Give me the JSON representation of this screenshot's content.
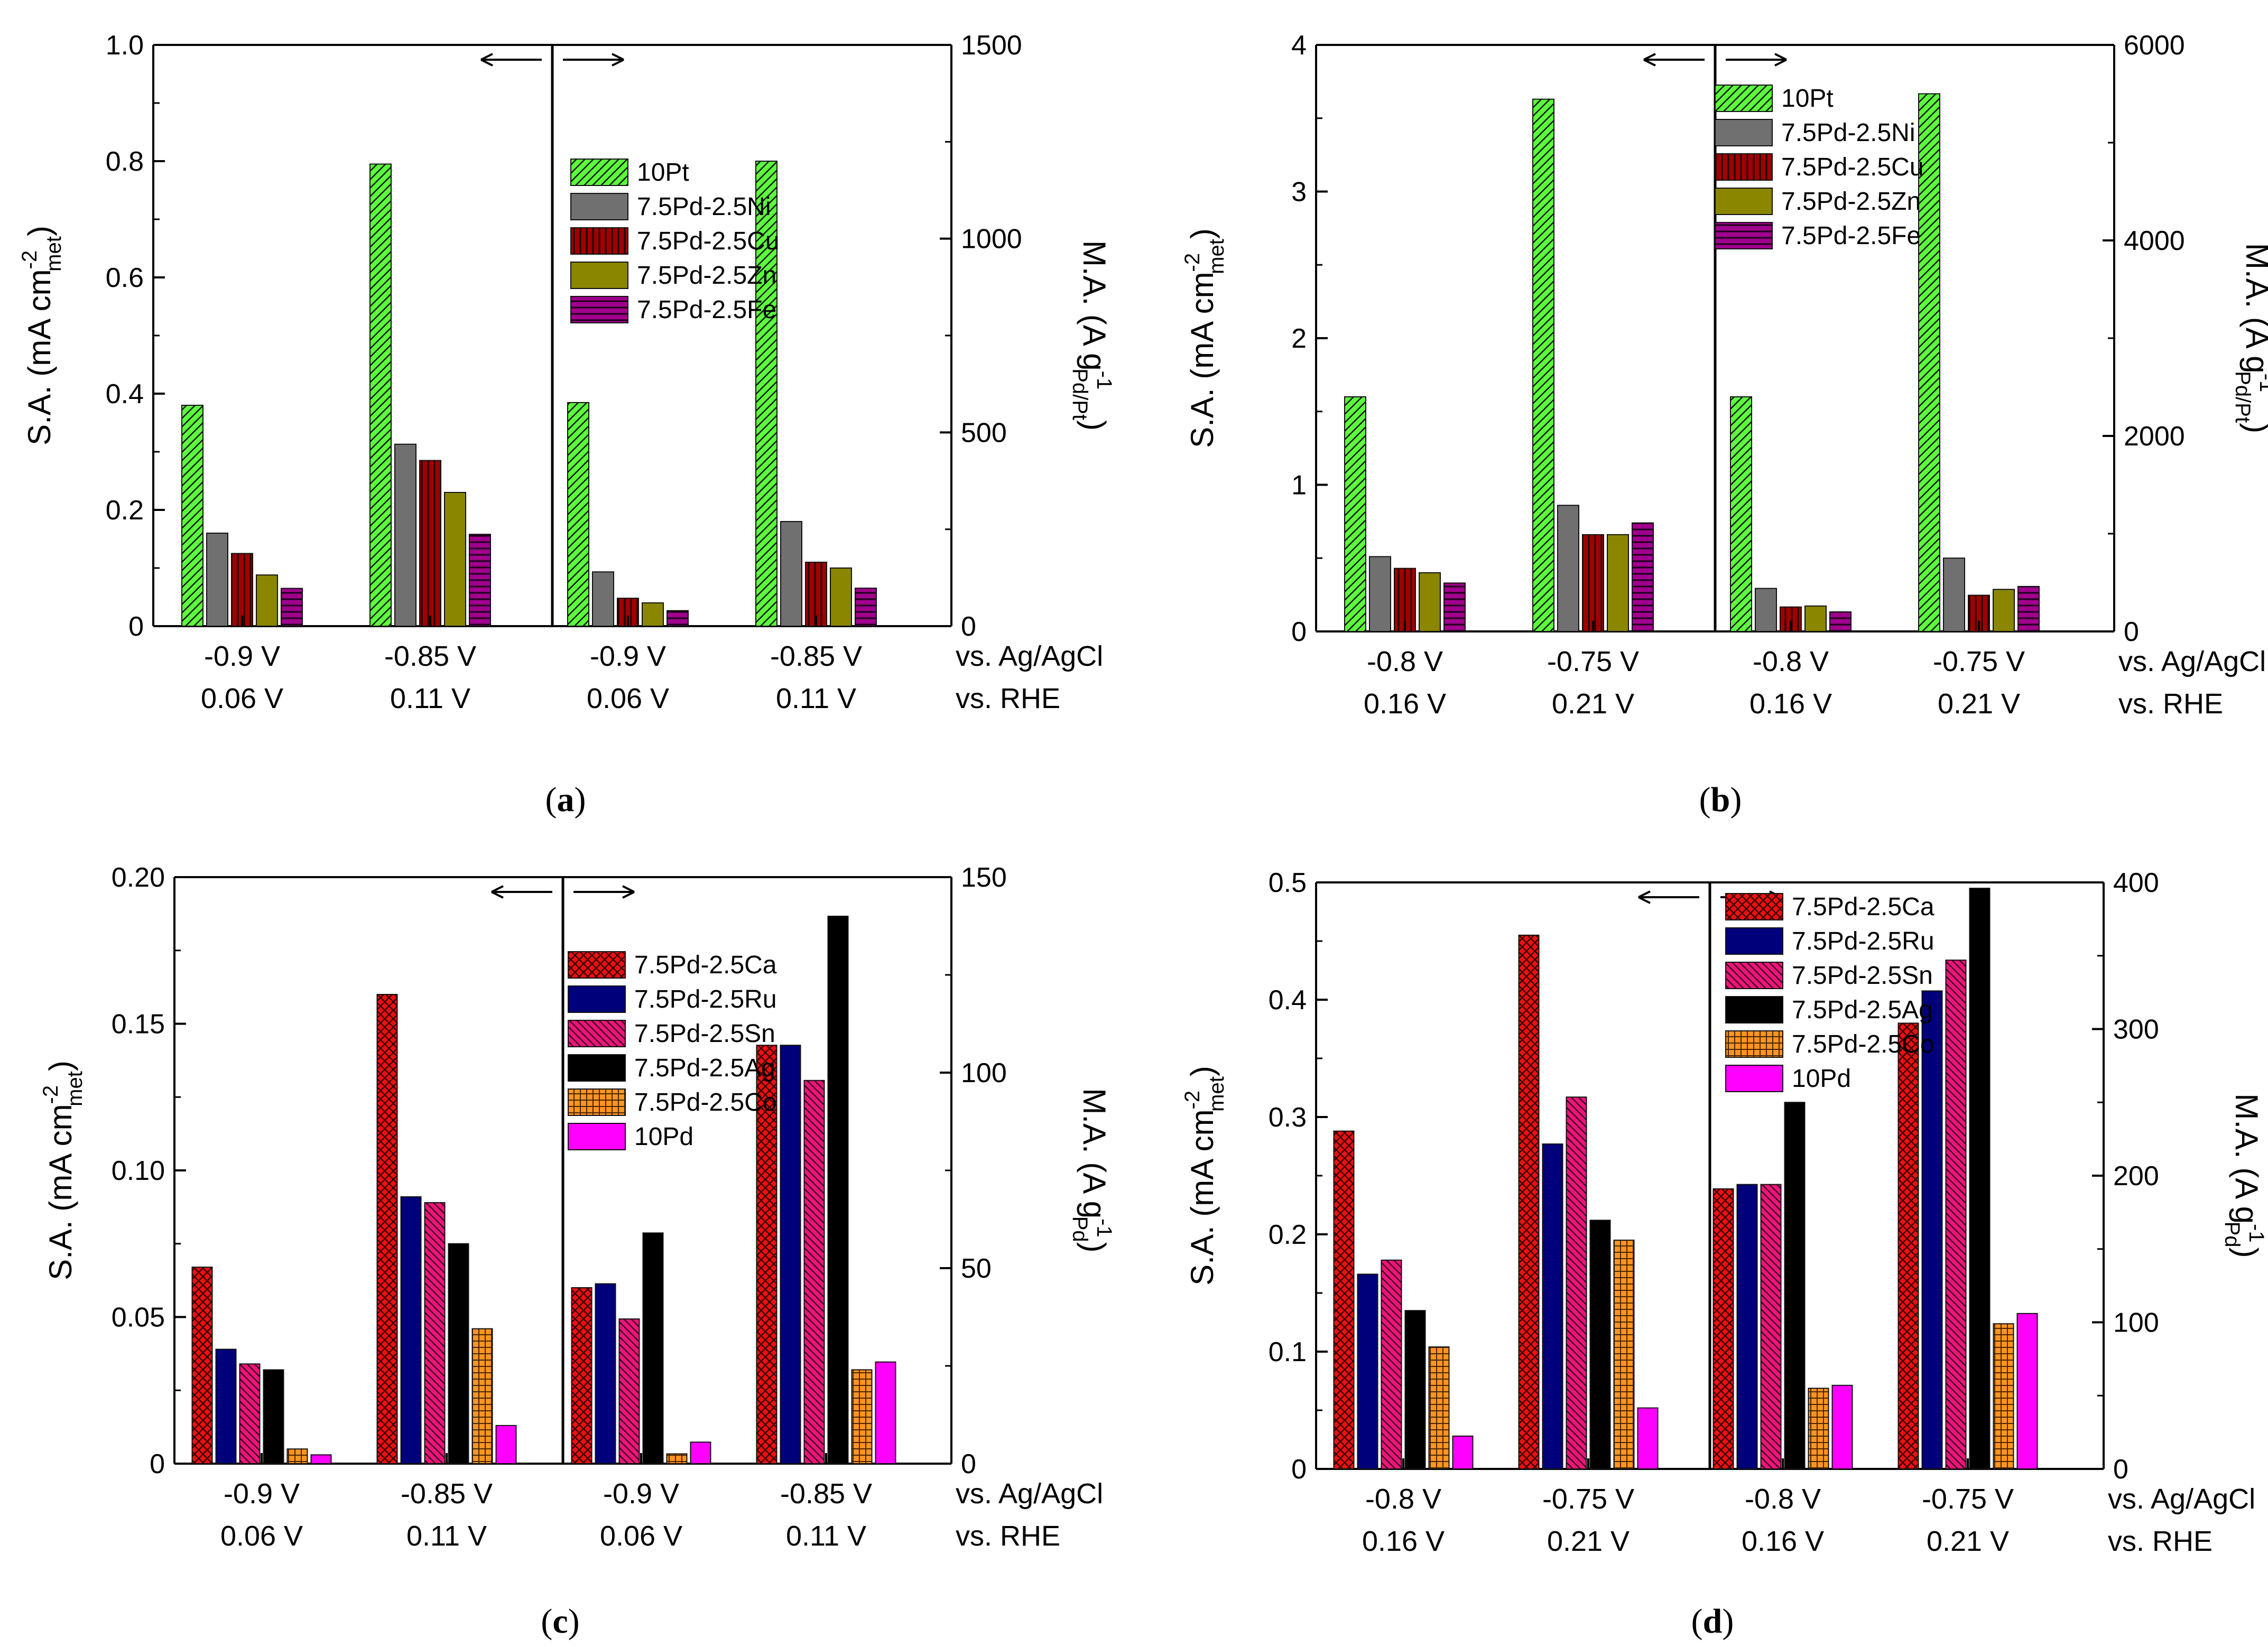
{
  "figure": {
    "x_row_labels": [
      "vs. Ag/AgCl",
      "vs. RHE"
    ],
    "colors": {
      "10Pt": "#5cff3c",
      "7.5Pd-2.5Ni": "#707070",
      "7.5Pd-2.5Cu": "#a00000",
      "7.5Pd-2.5Zn": "#8a8600",
      "7.5Pd-2.5Fe": "#a0008c",
      "7.5Pd-2.5Ca": "#ee1010",
      "7.5Pd-2.5Ru": "#00007a",
      "7.5Pd-2.5Sn": "#f0147a",
      "7.5Pd-2.5Ag": "#000000",
      "7.5Pd-2.5Co": "#ff9420",
      "10Pd": "#ff00ff"
    }
  },
  "chart_data": [
    {
      "type": "bar",
      "panel": "a",
      "caption": {
        "open": "(",
        "letter": "a",
        "close": ")"
      },
      "ylabel_left": {
        "main": "S.A. (mA cm",
        "sup": "-2",
        "sub": "met",
        "close": ")"
      },
      "ylabel_right": {
        "main": "M.A. (A g",
        "sup": "-1",
        "sub": "Pd/Pt",
        "close": ")"
      },
      "ylim_left": [
        0,
        1.0
      ],
      "yticks_left": [
        "0",
        "0.2",
        "0.4",
        "0.6",
        "0.8",
        "1.0"
      ],
      "yticks_left_values": [
        0,
        0.2,
        0.4,
        0.6,
        0.8,
        1.0
      ],
      "ylim_right": [
        0,
        1500
      ],
      "yticks_right": [
        "0",
        "500",
        "1000",
        "1500"
      ],
      "yticks_right_values": [
        0,
        500,
        1000,
        1500
      ],
      "legend": [
        "10Pt",
        "7.5Pd-2.5Ni",
        "7.5Pd-2.5Cu",
        "7.5Pd-2.5Zn",
        "7.5Pd-2.5Fe"
      ],
      "groups": [
        {
          "label1": "-0.9 V",
          "label2": "0.06 V",
          "axis": "left",
          "values": [
            0.38,
            0.16,
            0.125,
            0.088,
            0.065
          ]
        },
        {
          "label1": "-0.85 V",
          "label2": "0.11 V",
          "axis": "left",
          "values": [
            0.795,
            0.313,
            0.285,
            0.23,
            0.158
          ]
        },
        {
          "label1": "-0.9 V",
          "label2": "0.06 V",
          "axis": "right",
          "values": [
            577,
            140,
            72,
            60,
            40
          ]
        },
        {
          "label1": "-0.85 V",
          "label2": "0.11 V",
          "axis": "right",
          "values": [
            1200,
            270,
            165,
            150,
            98
          ]
        }
      ]
    },
    {
      "type": "bar",
      "panel": "b",
      "caption": {
        "open": "(",
        "letter": "b",
        "close": ")"
      },
      "ylabel_left": {
        "main": "S.A. (mA cm",
        "sup": "-2",
        "sub": "met",
        "close": ")"
      },
      "ylabel_right": {
        "main": "M.A. (A g",
        "sup": "-1",
        "sub": "Pd/Pt",
        "close": ")"
      },
      "ylim_left": [
        0,
        4
      ],
      "yticks_left": [
        "0",
        "1",
        "2",
        "3",
        "4"
      ],
      "yticks_left_values": [
        0,
        1,
        2,
        3,
        4
      ],
      "ylim_right": [
        0,
        6000
      ],
      "yticks_right": [
        "0",
        "2000",
        "4000",
        "6000"
      ],
      "yticks_right_values": [
        0,
        2000,
        4000,
        6000
      ],
      "legend": [
        "10Pt",
        "7.5Pd-2.5Ni",
        "7.5Pd-2.5Cu",
        "7.5Pd-2.5Zn",
        "7.5Pd-2.5Fe"
      ],
      "groups": [
        {
          "label1": "-0.8 V",
          "label2": "0.16 V",
          "axis": "left",
          "values": [
            1.6,
            0.51,
            0.43,
            0.4,
            0.33
          ]
        },
        {
          "label1": "-0.75 V",
          "label2": "0.21 V",
          "axis": "left",
          "values": [
            3.63,
            0.86,
            0.66,
            0.66,
            0.74
          ]
        },
        {
          "label1": "-0.8 V",
          "label2": "0.16 V",
          "axis": "right",
          "values": [
            2400,
            440,
            250,
            260,
            200
          ]
        },
        {
          "label1": "-0.75 V",
          "label2": "0.21 V",
          "axis": "right",
          "values": [
            5500,
            750,
            370,
            430,
            460
          ]
        }
      ]
    },
    {
      "type": "bar",
      "panel": "c",
      "caption": {
        "open": "(",
        "letter": "c",
        "close": ")"
      },
      "ylabel_left": {
        "main": "S.A. (mA cm",
        "sup": "-2",
        "sub": "met",
        "close": ")"
      },
      "ylabel_right": {
        "main": "M.A. (A g",
        "sup": "-1",
        "sub": "Pd",
        "close": ")"
      },
      "ylim_left": [
        0,
        0.2
      ],
      "yticks_left": [
        "0",
        "0.05",
        "0.10",
        "0.15",
        "0.20"
      ],
      "yticks_left_values": [
        0,
        0.05,
        0.1,
        0.15,
        0.2
      ],
      "ylim_right": [
        0,
        150
      ],
      "yticks_right": [
        "0",
        "50",
        "100",
        "150"
      ],
      "yticks_right_values": [
        0,
        50,
        100,
        150
      ],
      "legend": [
        "7.5Pd-2.5Ca",
        "7.5Pd-2.5Ru",
        "7.5Pd-2.5Sn",
        "7.5Pd-2.5Ag",
        "7.5Pd-2.5Co",
        "10Pd"
      ],
      "groups": [
        {
          "label1": "-0.9 V",
          "label2": "0.06 V",
          "axis": "left",
          "values": [
            0.067,
            0.039,
            0.034,
            0.032,
            0.005,
            0.003
          ]
        },
        {
          "label1": "-0.85 V",
          "label2": "0.11 V",
          "axis": "left",
          "values": [
            0.16,
            0.091,
            0.089,
            0.075,
            0.046,
            0.013
          ]
        },
        {
          "label1": "-0.9 V",
          "label2": "0.06 V",
          "axis": "right",
          "values": [
            45,
            46,
            37,
            59,
            2.5,
            5.5
          ]
        },
        {
          "label1": "-0.85 V",
          "label2": "0.11 V",
          "axis": "right",
          "values": [
            107,
            107,
            98,
            140,
            24,
            26
          ]
        }
      ]
    },
    {
      "type": "bar",
      "panel": "d",
      "caption": {
        "open": "(",
        "letter": "d",
        "close": ")"
      },
      "ylabel_left": {
        "main": "S.A. (mA cm",
        "sup": "-2",
        "sub": "met",
        "close": ")"
      },
      "ylabel_right": {
        "main": "M.A. (A g",
        "sup": "-1",
        "sub": "Pd",
        "close": ")"
      },
      "ylim_left": [
        0,
        0.5
      ],
      "yticks_left": [
        "0",
        "0.1",
        "0.2",
        "0.3",
        "0.4",
        "0.5"
      ],
      "yticks_left_values": [
        0,
        0.1,
        0.2,
        0.3,
        0.4,
        0.5
      ],
      "ylim_right": [
        0,
        400
      ],
      "yticks_right": [
        "0",
        "100",
        "200",
        "300",
        "400"
      ],
      "yticks_right_values": [
        0,
        100,
        200,
        300,
        400
      ],
      "legend": [
        "7.5Pd-2.5Ca",
        "7.5Pd-2.5Ru",
        "7.5Pd-2.5Sn",
        "7.5Pd-2.5Ag",
        "7.5Pd-2.5Co",
        "10Pd"
      ],
      "groups": [
        {
          "label1": "-0.8 V",
          "label2": "0.16 V",
          "axis": "left",
          "values": [
            0.288,
            0.166,
            0.178,
            0.135,
            0.104,
            0.028
          ]
        },
        {
          "label1": "-0.75 V",
          "label2": "0.21 V",
          "axis": "left",
          "values": [
            0.455,
            0.277,
            0.317,
            0.212,
            0.195,
            0.052
          ]
        },
        {
          "label1": "-0.8 V",
          "label2": "0.16 V",
          "axis": "right",
          "values": [
            191,
            194,
            194,
            250,
            55,
            57
          ]
        },
        {
          "label1": "-0.75 V",
          "label2": "0.21 V",
          "axis": "right",
          "values": [
            304,
            326,
            347,
            396,
            99,
            106
          ]
        }
      ]
    }
  ]
}
